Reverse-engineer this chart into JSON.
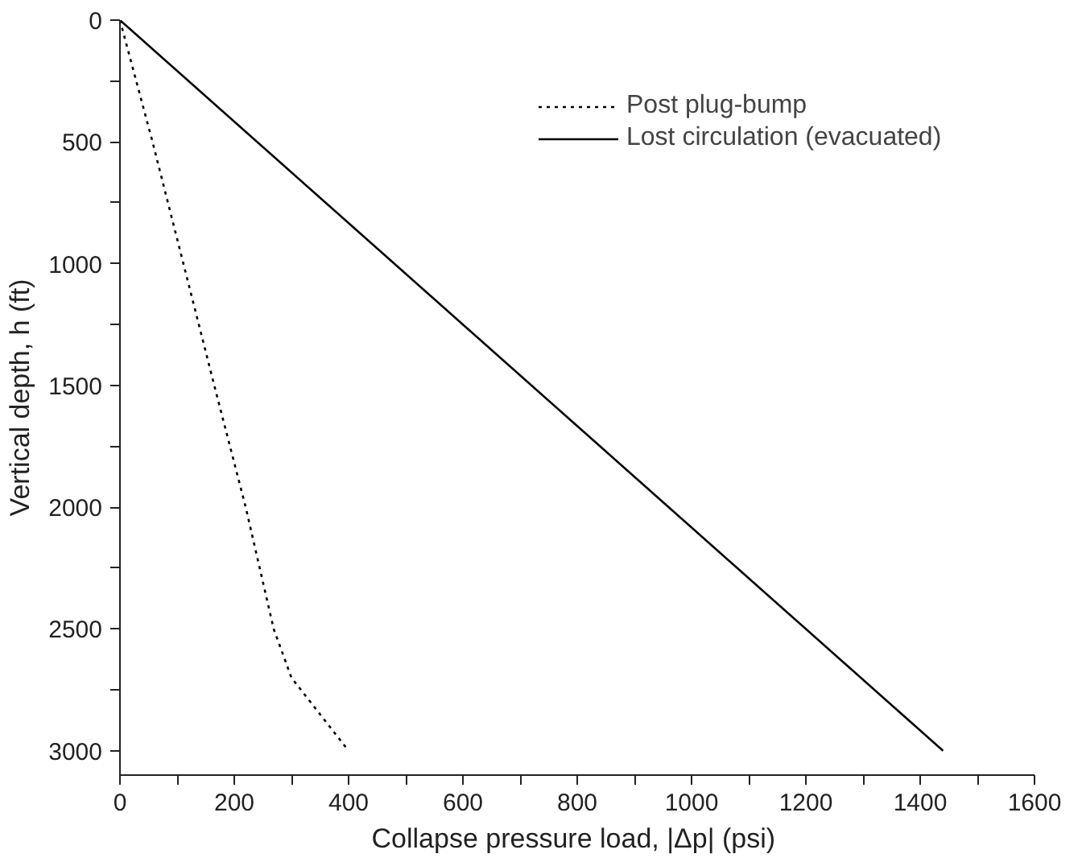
{
  "chart_data": {
    "type": "line",
    "xlabel": "Collapse pressure  load, |Δp| (psi)",
    "ylabel": "Vertical depth, h (ft)",
    "xlim": [
      0,
      1600
    ],
    "ylim": [
      3100,
      0
    ],
    "xticks": [
      0,
      {
        "value": 100,
        "label": null
      },
      200,
      {
        "value": 300,
        "label": null
      },
      400,
      {
        "value": 500,
        "label": null
      },
      600,
      {
        "value": 700,
        "label": null
      },
      800,
      {
        "value": 900,
        "label": null
      },
      1000,
      {
        "value": 1100,
        "label": null
      },
      1200,
      {
        "value": 1300,
        "label": null
      },
      1400,
      {
        "value": 1500,
        "label": null
      },
      1600
    ],
    "yticks": [
      0,
      {
        "value": 250,
        "label": null
      },
      500,
      {
        "value": 750,
        "label": null
      },
      1000,
      {
        "value": 1250,
        "label": null
      },
      1500,
      {
        "value": 1750,
        "label": null
      },
      2000,
      {
        "value": 2250,
        "label": null
      },
      2500,
      {
        "value": 2750,
        "label": null
      },
      3000
    ],
    "grid": false,
    "legend": "top right",
    "series": [
      {
        "name": "Post plug-bump",
        "color": "#000000",
        "line_style": "dotted",
        "x": [
          0,
          57,
          111,
          165,
          220,
          269,
          300,
          400
        ],
        "values": [
          0,
          500,
          1000,
          1500,
          2000,
          2500,
          2700,
          3000
        ]
      },
      {
        "name": "Lost circulation (evacuated)",
        "color": "#000000",
        "line_style": "solid",
        "x": [
          0,
          1440
        ],
        "values": [
          0,
          3000
        ]
      }
    ]
  }
}
